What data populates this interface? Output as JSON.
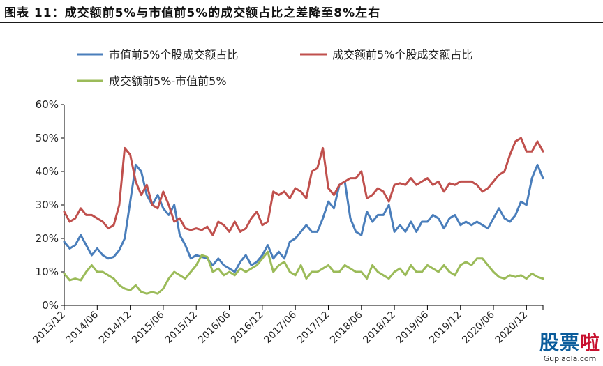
{
  "figure_title": "图表 11：成交额前5%与市值前5%的成交额占比之差降至8%左右",
  "watermark": {
    "text_part1": "股票",
    "text_part2": "啦",
    "url": "Gupiaola.com"
  },
  "colors": {
    "blue": "#4a7ebb",
    "red": "#c0504d",
    "green": "#9bbb59",
    "axis": "#000000"
  },
  "chart_data": {
    "type": "line",
    "title": "图表 11：成交额前5%与市值前5%的成交额占比之差降至8%左右",
    "xlabel": "",
    "ylabel": "",
    "ylim": [
      0,
      0.6
    ],
    "y_ticks": [
      "0%",
      "10%",
      "20%",
      "30%",
      "40%",
      "50%",
      "60%"
    ],
    "x_ticks": [
      "2013/12",
      "2014/06",
      "2014/12",
      "2015/06",
      "2015/12",
      "2016/06",
      "2016/12",
      "2017/06",
      "2017/12",
      "2018/06",
      "2018/12",
      "2019/06",
      "2019/12",
      "2020/06",
      "2020/12"
    ],
    "x_range": [
      0,
      87
    ],
    "legend_position": "top",
    "grid": false,
    "series": [
      {
        "name": "市值前5%个股成交额占比",
        "color_key": "blue",
        "points": [
          [
            0,
            0.19
          ],
          [
            1,
            0.17
          ],
          [
            2,
            0.18
          ],
          [
            3,
            0.21
          ],
          [
            4,
            0.18
          ],
          [
            5,
            0.15
          ],
          [
            6,
            0.17
          ],
          [
            7,
            0.15
          ],
          [
            8,
            0.14
          ],
          [
            9,
            0.145
          ],
          [
            10,
            0.165
          ],
          [
            11,
            0.2
          ],
          [
            12,
            0.31
          ],
          [
            13,
            0.42
          ],
          [
            14,
            0.4
          ],
          [
            15,
            0.33
          ],
          [
            16,
            0.3
          ],
          [
            17,
            0.33
          ],
          [
            18,
            0.29
          ],
          [
            19,
            0.27
          ],
          [
            20,
            0.3
          ],
          [
            21,
            0.21
          ],
          [
            22,
            0.18
          ],
          [
            23,
            0.14
          ],
          [
            24,
            0.15
          ],
          [
            25,
            0.145
          ],
          [
            26,
            0.14
          ],
          [
            27,
            0.12
          ],
          [
            28,
            0.14
          ],
          [
            29,
            0.12
          ],
          [
            30,
            0.11
          ],
          [
            31,
            0.1
          ],
          [
            32,
            0.13
          ],
          [
            33,
            0.15
          ],
          [
            34,
            0.12
          ],
          [
            35,
            0.13
          ],
          [
            36,
            0.15
          ],
          [
            37,
            0.18
          ],
          [
            38,
            0.14
          ],
          [
            39,
            0.16
          ],
          [
            40,
            0.14
          ],
          [
            41,
            0.19
          ],
          [
            42,
            0.2
          ],
          [
            43,
            0.22
          ],
          [
            44,
            0.24
          ],
          [
            45,
            0.22
          ],
          [
            46,
            0.22
          ],
          [
            47,
            0.26
          ],
          [
            48,
            0.31
          ],
          [
            49,
            0.29
          ],
          [
            50,
            0.36
          ],
          [
            51,
            0.37
          ],
          [
            52,
            0.26
          ],
          [
            53,
            0.22
          ],
          [
            54,
            0.21
          ],
          [
            55,
            0.28
          ],
          [
            56,
            0.25
          ],
          [
            57,
            0.27
          ],
          [
            58,
            0.27
          ],
          [
            59,
            0.3
          ],
          [
            60,
            0.22
          ],
          [
            61,
            0.24
          ],
          [
            62,
            0.22
          ],
          [
            63,
            0.25
          ],
          [
            64,
            0.22
          ],
          [
            65,
            0.25
          ],
          [
            66,
            0.25
          ],
          [
            67,
            0.27
          ],
          [
            68,
            0.26
          ],
          [
            69,
            0.23
          ],
          [
            70,
            0.26
          ],
          [
            71,
            0.27
          ],
          [
            72,
            0.24
          ],
          [
            73,
            0.25
          ],
          [
            74,
            0.24
          ],
          [
            75,
            0.25
          ],
          [
            76,
            0.24
          ],
          [
            77,
            0.23
          ],
          [
            78,
            0.26
          ],
          [
            79,
            0.29
          ],
          [
            80,
            0.26
          ],
          [
            81,
            0.25
          ],
          [
            82,
            0.27
          ],
          [
            83,
            0.31
          ],
          [
            84,
            0.3
          ],
          [
            85,
            0.38
          ],
          [
            86,
            0.42
          ],
          [
            87,
            0.38
          ]
        ]
      },
      {
        "name": "成交额前5%个股成交额占比",
        "color_key": "red",
        "points": [
          [
            0,
            0.28
          ],
          [
            1,
            0.25
          ],
          [
            2,
            0.26
          ],
          [
            3,
            0.29
          ],
          [
            4,
            0.27
          ],
          [
            5,
            0.27
          ],
          [
            6,
            0.26
          ],
          [
            7,
            0.25
          ],
          [
            8,
            0.23
          ],
          [
            9,
            0.24
          ],
          [
            10,
            0.3
          ],
          [
            11,
            0.47
          ],
          [
            12,
            0.45
          ],
          [
            13,
            0.37
          ],
          [
            14,
            0.33
          ],
          [
            15,
            0.36
          ],
          [
            16,
            0.3
          ],
          [
            17,
            0.29
          ],
          [
            18,
            0.34
          ],
          [
            19,
            0.3
          ],
          [
            20,
            0.25
          ],
          [
            21,
            0.26
          ],
          [
            22,
            0.23
          ],
          [
            23,
            0.225
          ],
          [
            24,
            0.23
          ],
          [
            25,
            0.225
          ],
          [
            26,
            0.235
          ],
          [
            27,
            0.21
          ],
          [
            28,
            0.25
          ],
          [
            29,
            0.24
          ],
          [
            30,
            0.22
          ],
          [
            31,
            0.25
          ],
          [
            32,
            0.22
          ],
          [
            33,
            0.23
          ],
          [
            34,
            0.26
          ],
          [
            35,
            0.28
          ],
          [
            36,
            0.24
          ],
          [
            37,
            0.25
          ],
          [
            38,
            0.34
          ],
          [
            39,
            0.33
          ],
          [
            40,
            0.34
          ],
          [
            41,
            0.32
          ],
          [
            42,
            0.35
          ],
          [
            43,
            0.34
          ],
          [
            44,
            0.32
          ],
          [
            45,
            0.4
          ],
          [
            46,
            0.41
          ],
          [
            47,
            0.47
          ],
          [
            48,
            0.35
          ],
          [
            49,
            0.33
          ],
          [
            50,
            0.36
          ],
          [
            51,
            0.37
          ],
          [
            52,
            0.38
          ],
          [
            53,
            0.38
          ],
          [
            54,
            0.4
          ],
          [
            55,
            0.32
          ],
          [
            56,
            0.33
          ],
          [
            57,
            0.35
          ],
          [
            58,
            0.34
          ],
          [
            59,
            0.31
          ],
          [
            60,
            0.36
          ],
          [
            61,
            0.365
          ],
          [
            62,
            0.36
          ],
          [
            63,
            0.38
          ],
          [
            64,
            0.36
          ],
          [
            65,
            0.37
          ],
          [
            66,
            0.38
          ],
          [
            67,
            0.36
          ],
          [
            68,
            0.37
          ],
          [
            69,
            0.34
          ],
          [
            70,
            0.365
          ],
          [
            71,
            0.36
          ],
          [
            72,
            0.37
          ],
          [
            73,
            0.37
          ],
          [
            74,
            0.37
          ],
          [
            75,
            0.36
          ],
          [
            76,
            0.34
          ],
          [
            77,
            0.35
          ],
          [
            78,
            0.37
          ],
          [
            79,
            0.39
          ],
          [
            80,
            0.4
          ],
          [
            81,
            0.45
          ],
          [
            82,
            0.49
          ],
          [
            83,
            0.5
          ],
          [
            84,
            0.46
          ],
          [
            85,
            0.46
          ],
          [
            86,
            0.49
          ],
          [
            87,
            0.46
          ]
        ]
      },
      {
        "name": "成交额前5%-市值前5%",
        "color_key": "green",
        "points": [
          [
            0,
            0.095
          ],
          [
            1,
            0.075
          ],
          [
            2,
            0.08
          ],
          [
            3,
            0.075
          ],
          [
            4,
            0.1
          ],
          [
            5,
            0.12
          ],
          [
            6,
            0.1
          ],
          [
            7,
            0.1
          ],
          [
            8,
            0.09
          ],
          [
            9,
            0.08
          ],
          [
            10,
            0.06
          ],
          [
            11,
            0.05
          ],
          [
            12,
            0.045
          ],
          [
            13,
            0.06
          ],
          [
            14,
            0.04
          ],
          [
            15,
            0.035
          ],
          [
            16,
            0.04
          ],
          [
            17,
            0.035
          ],
          [
            18,
            0.05
          ],
          [
            19,
            0.08
          ],
          [
            20,
            0.1
          ],
          [
            21,
            0.09
          ],
          [
            22,
            0.08
          ],
          [
            23,
            0.1
          ],
          [
            24,
            0.12
          ],
          [
            25,
            0.15
          ],
          [
            26,
            0.145
          ],
          [
            27,
            0.1
          ],
          [
            28,
            0.11
          ],
          [
            29,
            0.09
          ],
          [
            30,
            0.1
          ],
          [
            31,
            0.09
          ],
          [
            32,
            0.11
          ],
          [
            33,
            0.1
          ],
          [
            34,
            0.11
          ],
          [
            35,
            0.12
          ],
          [
            36,
            0.14
          ],
          [
            37,
            0.16
          ],
          [
            38,
            0.1
          ],
          [
            39,
            0.12
          ],
          [
            40,
            0.13
          ],
          [
            41,
            0.1
          ],
          [
            42,
            0.09
          ],
          [
            43,
            0.12
          ],
          [
            44,
            0.08
          ],
          [
            45,
            0.1
          ],
          [
            46,
            0.1
          ],
          [
            47,
            0.11
          ],
          [
            48,
            0.12
          ],
          [
            49,
            0.1
          ],
          [
            50,
            0.1
          ],
          [
            51,
            0.12
          ],
          [
            52,
            0.11
          ],
          [
            53,
            0.1
          ],
          [
            54,
            0.1
          ],
          [
            55,
            0.08
          ],
          [
            56,
            0.12
          ],
          [
            57,
            0.1
          ],
          [
            58,
            0.09
          ],
          [
            59,
            0.08
          ],
          [
            60,
            0.1
          ],
          [
            61,
            0.11
          ],
          [
            62,
            0.09
          ],
          [
            63,
            0.12
          ],
          [
            64,
            0.1
          ],
          [
            65,
            0.1
          ],
          [
            66,
            0.12
          ],
          [
            67,
            0.11
          ],
          [
            68,
            0.1
          ],
          [
            69,
            0.12
          ],
          [
            70,
            0.1
          ],
          [
            71,
            0.09
          ],
          [
            72,
            0.12
          ],
          [
            73,
            0.13
          ],
          [
            74,
            0.12
          ],
          [
            75,
            0.14
          ],
          [
            76,
            0.14
          ],
          [
            77,
            0.12
          ],
          [
            78,
            0.1
          ],
          [
            79,
            0.085
          ],
          [
            80,
            0.08
          ],
          [
            81,
            0.09
          ],
          [
            82,
            0.085
          ],
          [
            83,
            0.09
          ],
          [
            84,
            0.08
          ],
          [
            85,
            0.095
          ],
          [
            86,
            0.085
          ],
          [
            87,
            0.08
          ]
        ]
      }
    ]
  }
}
